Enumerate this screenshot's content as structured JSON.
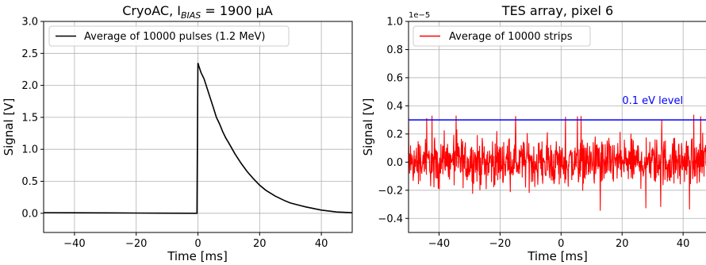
{
  "chart_data": [
    {
      "type": "line",
      "title_main": "CryoAC, I",
      "title_sub": "BIAS",
      "title_rest": " = 1900 μA",
      "xlabel": "Time [ms]",
      "ylabel": "Signal [V]",
      "xlim": [
        -50,
        50
      ],
      "ylim": [
        -0.3,
        3.0
      ],
      "xticks": [
        -40,
        -20,
        0,
        20,
        40
      ],
      "xtick_labels": [
        "−40",
        "−20",
        "0",
        "20",
        "40"
      ],
      "yticks": [
        0.0,
        0.5,
        1.0,
        1.5,
        2.0,
        2.5,
        3.0
      ],
      "ytick_labels": [
        "0.0",
        "0.5",
        "1.0",
        "1.5",
        "2.0",
        "2.5",
        "3.0"
      ],
      "grid": true,
      "legend_position": "top-left",
      "series": [
        {
          "name": "Average of 10000 pulses (1.2 MeV)",
          "color": "#000000",
          "x": [
            -50,
            -40,
            -30,
            -20,
            -10,
            -0.3,
            0,
            0.3,
            1,
            2,
            3,
            4,
            5,
            6,
            7,
            8,
            9,
            10,
            12,
            14,
            16,
            18,
            20,
            22,
            25,
            28,
            30,
            35,
            40,
            45,
            50
          ],
          "y": [
            0.01,
            0.008,
            0.006,
            0.004,
            0.002,
            0.0,
            2.35,
            2.3,
            2.2,
            2.1,
            1.95,
            1.8,
            1.65,
            1.5,
            1.4,
            1.28,
            1.18,
            1.1,
            0.93,
            0.78,
            0.65,
            0.54,
            0.44,
            0.36,
            0.27,
            0.2,
            0.16,
            0.1,
            0.05,
            0.02,
            0.01
          ]
        }
      ]
    },
    {
      "type": "line",
      "title": "TES array, pixel 6",
      "xlabel": "Time [ms]",
      "ylabel": "Signal [V]",
      "y_offset_label": "1e−5",
      "xlim": [
        -50,
        50
      ],
      "ylim": [
        -0.5,
        1.0
      ],
      "xticks": [
        -40,
        -20,
        0,
        20,
        40
      ],
      "xtick_labels": [
        "−40",
        "−20",
        "0",
        "20",
        "40"
      ],
      "yticks": [
        -0.4,
        -0.2,
        0.0,
        0.2,
        0.4,
        0.6,
        0.8,
        1.0
      ],
      "ytick_labels": [
        "−0.4",
        "−0.2",
        "0.0",
        "0.2",
        "0.4",
        "0.6",
        "0.8",
        "1.0"
      ],
      "grid": true,
      "legend_position": "top-left",
      "series": [
        {
          "name": "Average of 10000 strips",
          "color": "#ff0000",
          "noise_amplitude": 0.12,
          "noise_min": -0.36,
          "noise_max": 0.34
        }
      ],
      "hline": {
        "y": 0.3,
        "color": "#0000ff",
        "label": "0.1 eV level"
      }
    }
  ]
}
